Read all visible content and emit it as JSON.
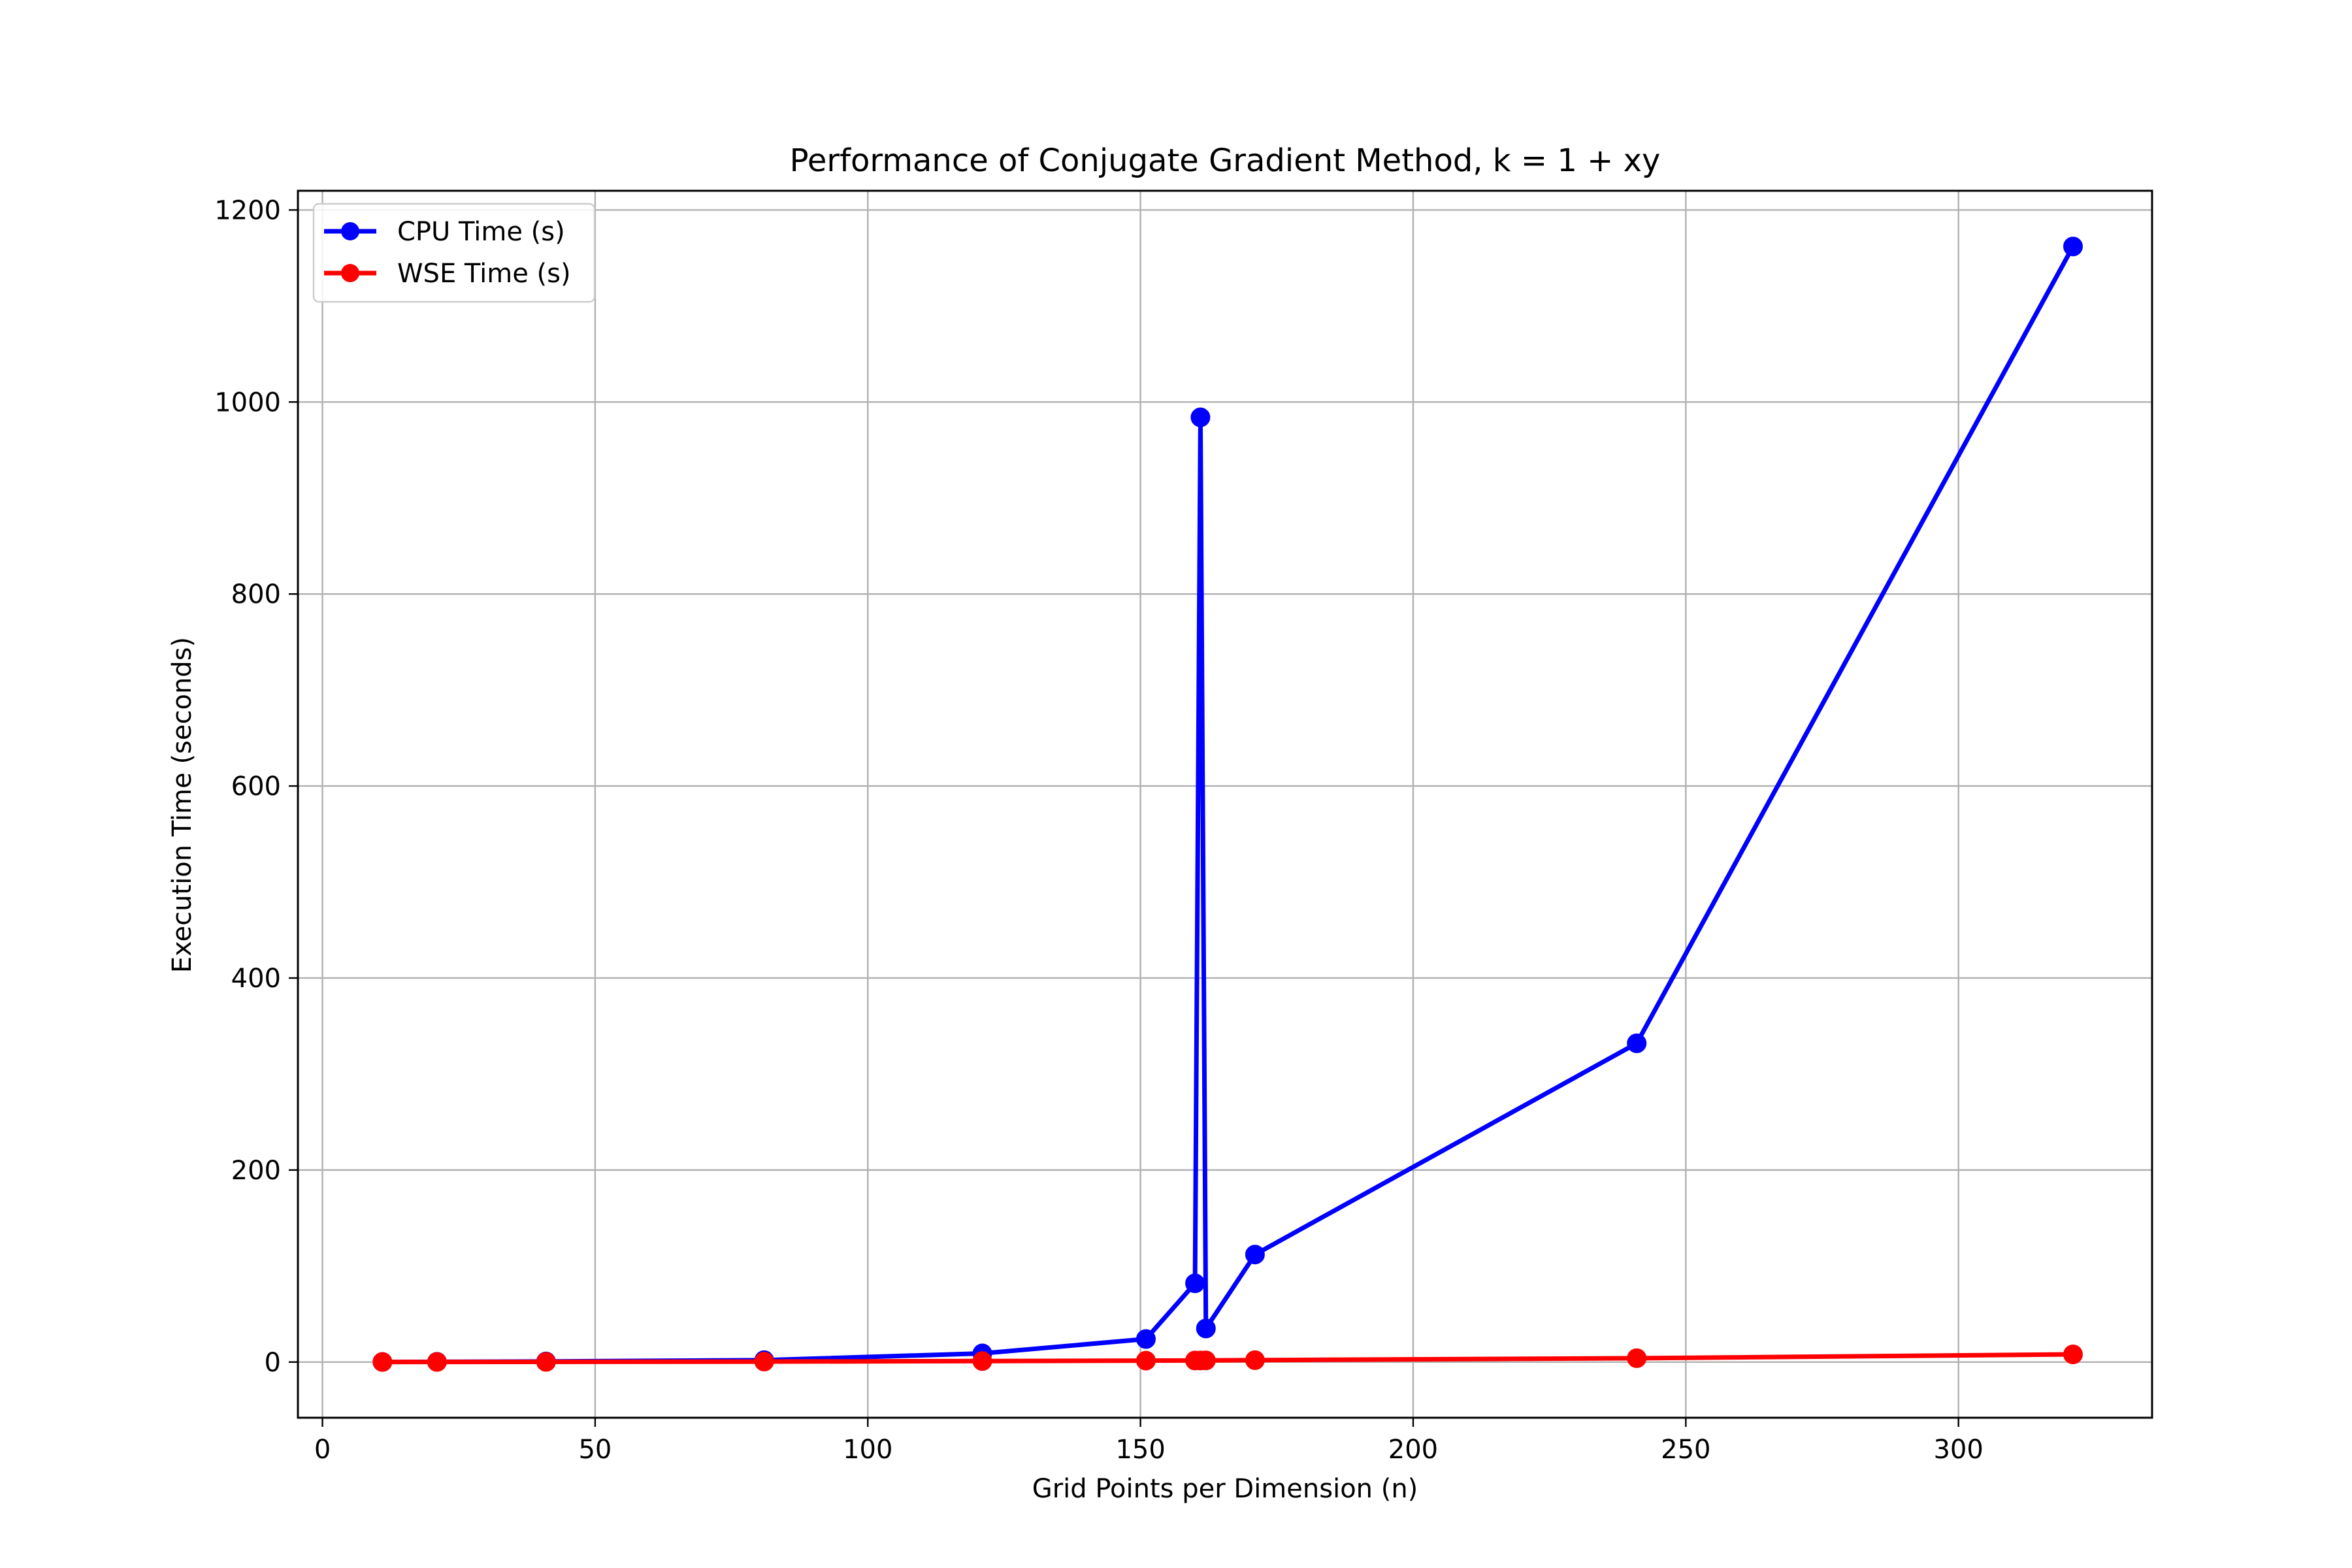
{
  "chart_data": {
    "type": "line",
    "title": "Performance of Conjugate Gradient Method, k = 1 + xy",
    "xlabel": "Grid Points per Dimension (n)",
    "ylabel": "Execution Time (seconds)",
    "xlim": [
      -4.5,
      335.5
    ],
    "ylim": [
      -58,
      1220
    ],
    "xticks": [
      0,
      50,
      100,
      150,
      200,
      250,
      300
    ],
    "yticks": [
      0,
      200,
      400,
      600,
      800,
      1000,
      1200
    ],
    "grid": true,
    "legend_position": "upper-left",
    "x": [
      11,
      21,
      41,
      81,
      121,
      151,
      160,
      161,
      162,
      171,
      241,
      321
    ],
    "series": [
      {
        "name": "CPU Time (s)",
        "color": "#0000ff",
        "marker": "circle",
        "values": [
          0.1,
          0.3,
          0.6,
          2,
          9,
          24,
          82,
          984,
          35,
          112,
          332,
          1162
        ]
      },
      {
        "name": "WSE Time (s)",
        "color": "#ff0000",
        "marker": "circle",
        "values": [
          0.1,
          0.1,
          0.2,
          0.5,
          1,
          1.5,
          1.6,
          1.6,
          1.7,
          2,
          4,
          8
        ]
      }
    ]
  }
}
